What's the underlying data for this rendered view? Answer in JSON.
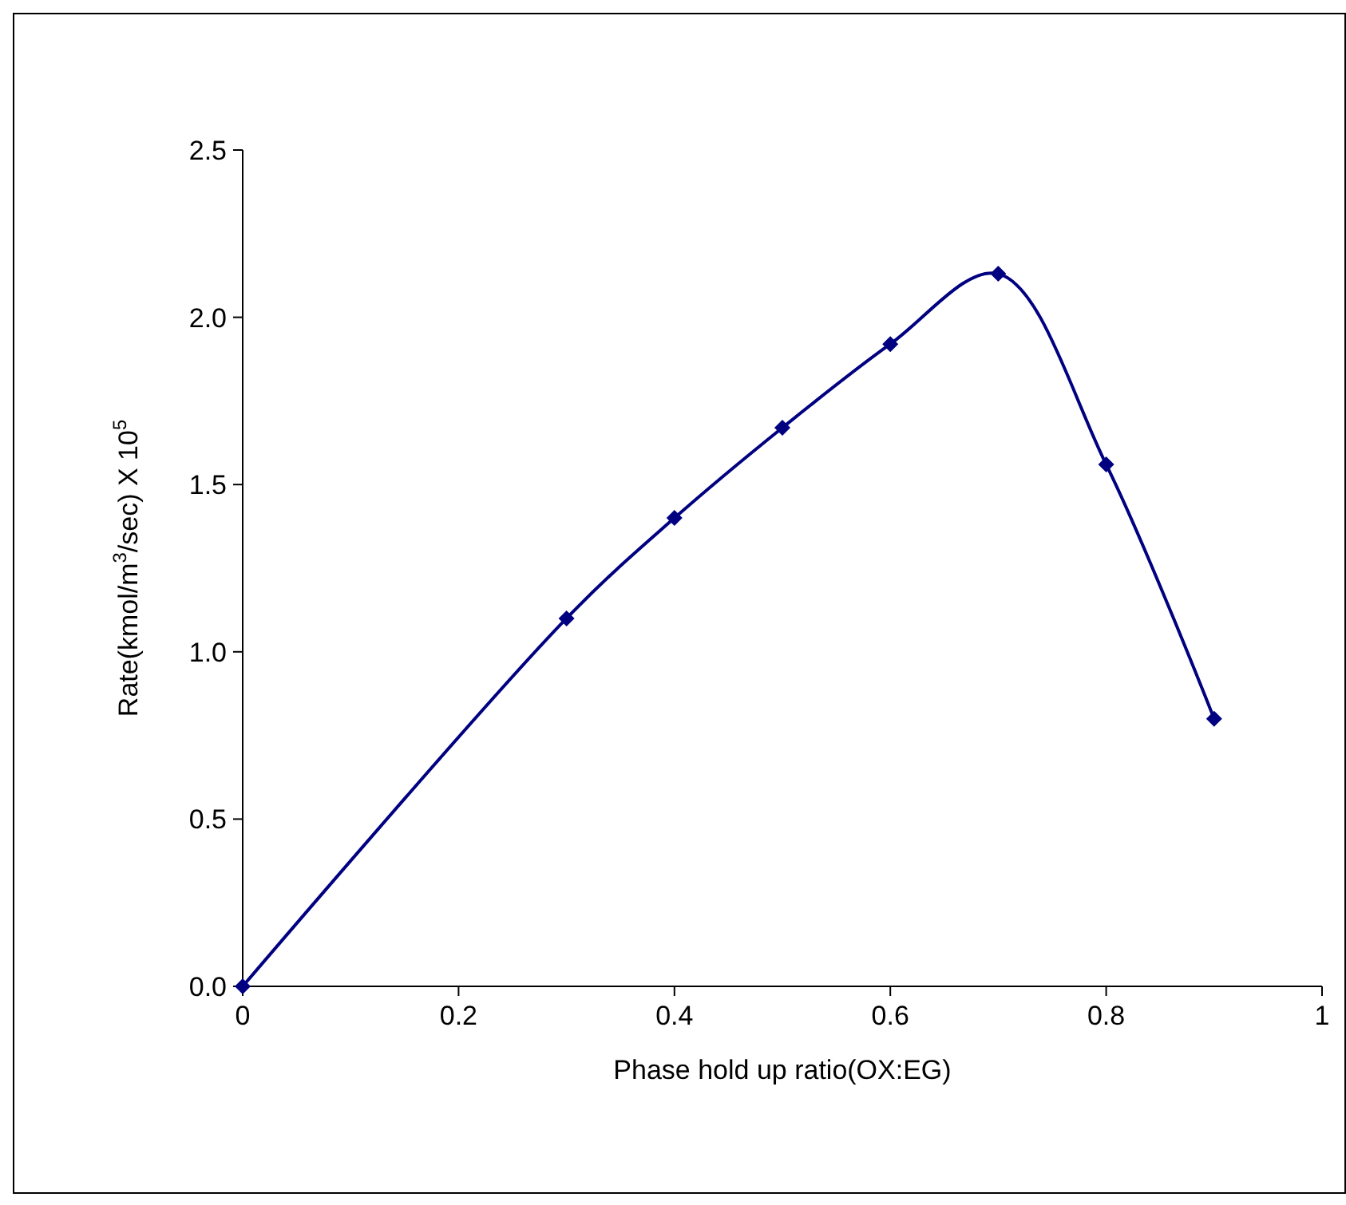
{
  "chart_data": {
    "type": "line",
    "xlabel": "Phase hold up ratio(OX:EG)",
    "ylabel": "Rate(kmol/m$^{3}$/sec) X 10$^{5}$",
    "x": [
      0,
      0.3,
      0.4,
      0.5,
      0.6,
      0.7,
      0.8,
      0.9
    ],
    "series": [
      {
        "color": "#000080",
        "values": [
          0,
          1.1,
          1.4,
          1.67,
          1.92,
          2.13,
          1.56,
          0.8
        ]
      }
    ],
    "xlim": [
      0,
      1
    ],
    "xticks": [
      0,
      0.2,
      0.4,
      0.6,
      0.8,
      1
    ],
    "ylim": [
      0,
      2.5
    ],
    "yticks": [
      {
        "value": 0,
        "label": "0.0"
      },
      {
        "value": 0.5,
        "label": "0.5"
      },
      {
        "value": 1,
        "label": "1.0"
      },
      {
        "value": 1.5,
        "label": "1.5"
      },
      {
        "value": 2,
        "label": "2.0"
      },
      {
        "value": 2.5,
        "label": "2.5"
      }
    ],
    "grid": false,
    "marker": "diamond",
    "line_style": "solid"
  }
}
